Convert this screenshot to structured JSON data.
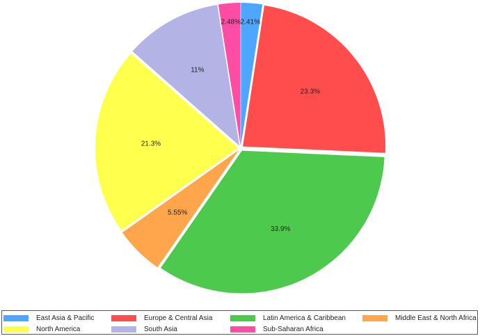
{
  "chart_data": {
    "type": "pie",
    "categories": [
      "East Asia & Pacific",
      "Europe & Central Asia",
      "Latin America & Caribbean",
      "Middle East & North Africa",
      "North America",
      "South Asia",
      "Sub-Saharan Africa"
    ],
    "values": [
      2.41,
      23.3,
      33.9,
      5.55,
      21.3,
      11,
      2.48
    ],
    "labels": [
      "2.41%",
      "23.3%",
      "33.9%",
      "5.55%",
      "21.3%",
      "11%",
      "2.48%"
    ],
    "colors": [
      "#4da6ff",
      "#ff4d4d",
      "#4dc94d",
      "#ffa64d",
      "#ffff4d",
      "#b3b3e6",
      "#ff4da6"
    ],
    "legend": "bottom"
  }
}
